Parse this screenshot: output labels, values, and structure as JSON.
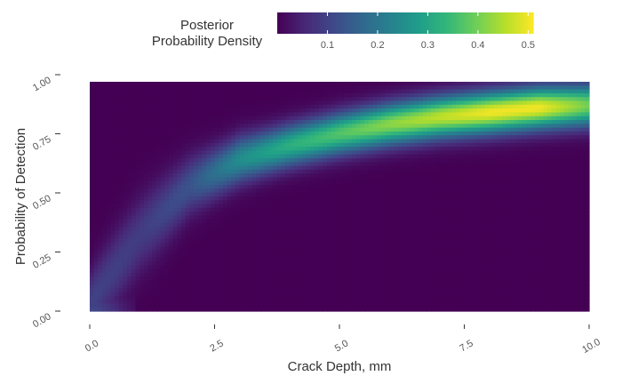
{
  "chart_data": {
    "type": "heatmap",
    "title": "",
    "xlabel": "Crack Depth, mm",
    "ylabel": "Probability of Detection",
    "xlim": [
      0,
      10
    ],
    "ylim": [
      0,
      0.97
    ],
    "x_ticks": [
      "0.0",
      "2.5",
      "5.0",
      "7.5",
      "10.0"
    ],
    "x_tick_values": [
      0,
      2.5,
      5,
      7.5,
      10
    ],
    "y_ticks": [
      "0.00",
      "0.25",
      "0.50",
      "0.75",
      "1.00"
    ],
    "y_tick_values": [
      0,
      0.25,
      0.5,
      0.75,
      1.0
    ],
    "colorbar": {
      "title_lines": [
        "Posterior",
        "Probability Density"
      ],
      "colormap": "viridis",
      "range": [
        0,
        0.51
      ],
      "ticks": [
        "0.1",
        "0.2",
        "0.3",
        "0.4",
        "0.5"
      ],
      "tick_values": [
        0.1,
        0.2,
        0.3,
        0.4,
        0.5
      ],
      "legend_position": "top"
    },
    "density_ridge": {
      "description_points_x": [
        0,
        1,
        2,
        3,
        4,
        5,
        6,
        7,
        8,
        9,
        10
      ],
      "ridge_y": [
        0.03,
        0.32,
        0.53,
        0.64,
        0.7,
        0.75,
        0.79,
        0.82,
        0.84,
        0.86,
        0.87
      ],
      "peak_density": [
        0.1,
        0.09,
        0.13,
        0.25,
        0.32,
        0.37,
        0.42,
        0.46,
        0.5,
        0.5,
        0.4
      ]
    },
    "grid": false
  }
}
